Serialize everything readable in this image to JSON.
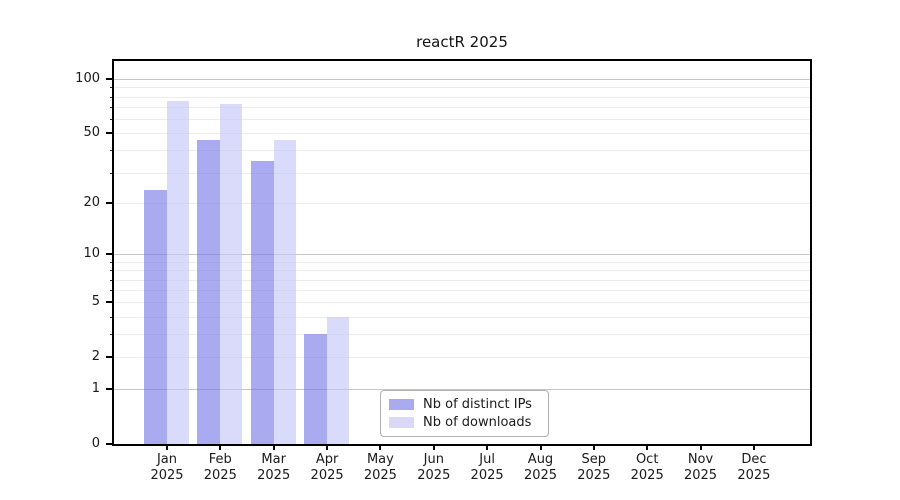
{
  "figure_title": "reactR 2025",
  "chart_data": {
    "type": "bar",
    "title": "reactR 2025",
    "xlabel": "",
    "ylabel": "",
    "year_label": "2025",
    "categories": [
      "Jan",
      "Feb",
      "Mar",
      "Apr",
      "May",
      "Jun",
      "Jul",
      "Aug",
      "Sep",
      "Oct",
      "Nov",
      "Dec"
    ],
    "series": [
      {
        "name": "Nb of distinct IPs",
        "color": "#aaaaee",
        "bar_fill": "rgba(118,118,232,0.62)",
        "values": [
          24,
          46,
          35,
          3,
          null,
          null,
          null,
          null,
          null,
          null,
          null,
          null
        ]
      },
      {
        "name": "Nb of downloads",
        "color": "#d9d9f7",
        "bar_fill": "rgba(195,195,247,0.62)",
        "values": [
          76,
          73,
          46,
          4,
          null,
          null,
          null,
          null,
          null,
          null,
          null,
          null
        ]
      }
    ],
    "yticks": [
      0,
      1,
      2,
      5,
      10,
      20,
      50,
      100
    ],
    "minor_gridlines": [
      2,
      3,
      4,
      5,
      6,
      7,
      8,
      9,
      20,
      30,
      40,
      50,
      60,
      70,
      80,
      90
    ],
    "major_gridlines": [
      1,
      10,
      100
    ],
    "scale": "log10(value+1)",
    "ylim": [
      0,
      126
    ],
    "grid": "horizontal",
    "legend_position": "inside-bottom-center",
    "colors": {
      "axis": "#000000",
      "grid_minor": "#ececec",
      "grid_major": "#c6c6c6",
      "text": "#1a1a1a",
      "background": "#ffffff"
    }
  },
  "legend": {
    "items": [
      {
        "label": "Nb of distinct IPs"
      },
      {
        "label": "Nb of downloads"
      }
    ]
  }
}
